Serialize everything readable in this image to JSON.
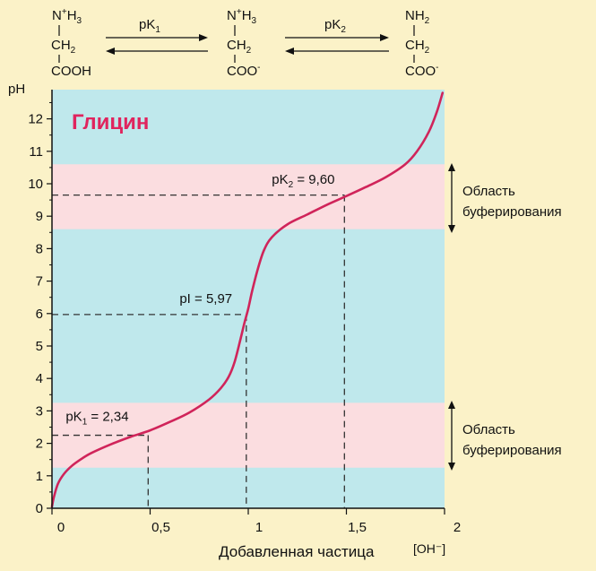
{
  "chart_data": {
    "type": "line",
    "title": "Глицин",
    "xlabel": "Добавленная частица",
    "xunit_label": "[OH⁻]",
    "ylabel": "pH",
    "xlim": [
      0,
      2
    ],
    "ylim": [
      0,
      12.9
    ],
    "x_ticks": [
      0,
      0.5,
      1,
      1.5,
      2
    ],
    "x_tick_labels": [
      "0",
      "0,5",
      "1",
      "1,5",
      "2"
    ],
    "y_ticks": [
      0,
      1,
      2,
      3,
      4,
      5,
      6,
      7,
      8,
      9,
      10,
      11,
      12
    ],
    "y_tick_labels": [
      "0",
      "1",
      "2",
      "3",
      "4",
      "5",
      "6",
      "7",
      "8",
      "9",
      "10",
      "11",
      "12"
    ],
    "series": [
      {
        "name": "",
        "color": "#d0245a",
        "points": [
          [
            0.0,
            0.05
          ],
          [
            0.01,
            0.35
          ],
          [
            0.03,
            0.75
          ],
          [
            0.06,
            1.05
          ],
          [
            0.1,
            1.3
          ],
          [
            0.15,
            1.52
          ],
          [
            0.2,
            1.7
          ],
          [
            0.3,
            1.97
          ],
          [
            0.4,
            2.2
          ],
          [
            0.5,
            2.4
          ],
          [
            0.6,
            2.66
          ],
          [
            0.7,
            2.95
          ],
          [
            0.8,
            3.35
          ],
          [
            0.86,
            3.7
          ],
          [
            0.9,
            4.05
          ],
          [
            0.93,
            4.5
          ],
          [
            0.96,
            5.2
          ],
          [
            0.98,
            5.7
          ],
          [
            1.0,
            6.15
          ],
          [
            1.02,
            6.7
          ],
          [
            1.05,
            7.4
          ],
          [
            1.08,
            7.95
          ],
          [
            1.12,
            8.35
          ],
          [
            1.2,
            8.75
          ],
          [
            1.3,
            9.05
          ],
          [
            1.4,
            9.35
          ],
          [
            1.5,
            9.62
          ],
          [
            1.6,
            9.9
          ],
          [
            1.7,
            10.2
          ],
          [
            1.8,
            10.6
          ],
          [
            1.86,
            11.0
          ],
          [
            1.92,
            11.6
          ],
          [
            1.96,
            12.2
          ],
          [
            1.99,
            12.8
          ]
        ]
      }
    ],
    "bands": [
      {
        "y0": 1.25,
        "y1": 3.25,
        "color": "#fbdde0"
      },
      {
        "y0": 8.6,
        "y1": 10.6,
        "color": "#fbdde0"
      }
    ],
    "plot_background": "#bfe8ec",
    "annotations": [
      {
        "label_main": "pK",
        "label_sub": "1",
        "label_rest": " = 2,34",
        "x": 0.49,
        "y": 2.25
      },
      {
        "label_main": "pI = 5,97",
        "label_sub": "",
        "label_rest": "",
        "x": 0.99,
        "y": 5.97
      },
      {
        "label_main": "pK",
        "label_sub": "2",
        "label_rest": " = 9,60",
        "x": 1.49,
        "y": 9.65
      }
    ],
    "buffer_region_label_line1": "Область",
    "buffer_region_label_line2": "буферирования"
  },
  "reaction": {
    "species": [
      {
        "top_main": "N",
        "top_sup": "+",
        "top_rest": "H",
        "top_sub": "3",
        "mid_main": "CH",
        "mid_sub": "2",
        "bottom_main": "COOH",
        "bottom_sup": ""
      },
      {
        "top_main": "N",
        "top_sup": "+",
        "top_rest": "H",
        "top_sub": "3",
        "mid_main": "CH",
        "mid_sub": "2",
        "bottom_main": "COO",
        "bottom_sup": "-"
      },
      {
        "top_main": "NH",
        "top_sup": "",
        "top_rest": "",
        "top_sub": "2",
        "mid_main": "CH",
        "mid_sub": "2",
        "bottom_main": "COO",
        "bottom_sup": "-"
      }
    ],
    "arrows": [
      {
        "label_main": "pK",
        "label_sub": "1"
      },
      {
        "label_main": "pK",
        "label_sub": "2"
      }
    ]
  }
}
